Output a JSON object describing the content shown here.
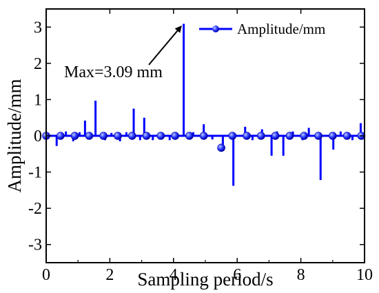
{
  "chart_data": {
    "type": "line",
    "title": "",
    "xlabel": "Sampling period/s",
    "ylabel": "Amplitude/mm",
    "xlim": [
      0,
      10
    ],
    "ylim": [
      -3.5,
      3.5
    ],
    "xticks": [
      0,
      2,
      4,
      6,
      8,
      10
    ],
    "xtick_labels": [
      "0",
      "2",
      "4",
      "6",
      "8",
      "10"
    ],
    "yticks": [
      -3,
      -2,
      -1,
      0,
      1,
      2,
      3
    ],
    "ytick_labels": [
      "-3",
      "-2",
      "-1",
      "0",
      "1",
      "2",
      "3"
    ],
    "grid": false,
    "legend_position": "top-right",
    "series": [
      {
        "name": "Amplitude/mm",
        "color": "#0000ff",
        "marker": "circle",
        "spikes": [
          {
            "x": 0.33,
            "y": -0.28
          },
          {
            "x": 0.62,
            "y": 0.12
          },
          {
            "x": 0.85,
            "y": -0.15
          },
          {
            "x": 1.05,
            "y": 0.1
          },
          {
            "x": 1.22,
            "y": 0.42
          },
          {
            "x": 1.55,
            "y": 0.97
          },
          {
            "x": 1.85,
            "y": -0.12
          },
          {
            "x": 2.05,
            "y": 0.08
          },
          {
            "x": 2.32,
            "y": -0.15
          },
          {
            "x": 2.52,
            "y": 0.1
          },
          {
            "x": 2.75,
            "y": 0.75
          },
          {
            "x": 2.95,
            "y": -0.12
          },
          {
            "x": 3.08,
            "y": 0.5
          },
          {
            "x": 3.35,
            "y": -0.12
          },
          {
            "x": 3.55,
            "y": 0.08
          },
          {
            "x": 3.88,
            "y": -0.12
          },
          {
            "x": 4.32,
            "y": 3.09
          },
          {
            "x": 4.62,
            "y": 0.1
          },
          {
            "x": 4.95,
            "y": 0.32
          },
          {
            "x": 5.22,
            "y": -0.1
          },
          {
            "x": 5.55,
            "y": -0.32
          },
          {
            "x": 5.88,
            "y": -1.38
          },
          {
            "x": 6.25,
            "y": 0.25
          },
          {
            "x": 6.48,
            "y": -0.12
          },
          {
            "x": 6.78,
            "y": 0.18
          },
          {
            "x": 7.08,
            "y": -0.55
          },
          {
            "x": 7.25,
            "y": 0.12
          },
          {
            "x": 7.45,
            "y": -0.55
          },
          {
            "x": 7.75,
            "y": 0.12
          },
          {
            "x": 8.05,
            "y": -0.12
          },
          {
            "x": 8.25,
            "y": 0.22
          },
          {
            "x": 8.62,
            "y": -1.22
          },
          {
            "x": 9.02,
            "y": -0.38
          },
          {
            "x": 9.25,
            "y": 0.12
          },
          {
            "x": 9.62,
            "y": -0.12
          },
          {
            "x": 9.88,
            "y": 0.35
          }
        ],
        "marker_points": [
          {
            "x": 0.0,
            "y": 0.0
          },
          {
            "x": 0.45,
            "y": 0.0
          },
          {
            "x": 0.9,
            "y": 0.0
          },
          {
            "x": 1.35,
            "y": 0.0
          },
          {
            "x": 1.8,
            "y": 0.0
          },
          {
            "x": 2.25,
            "y": 0.0
          },
          {
            "x": 2.7,
            "y": 0.0
          },
          {
            "x": 3.15,
            "y": 0.0
          },
          {
            "x": 3.6,
            "y": 0.0
          },
          {
            "x": 4.05,
            "y": 0.0
          },
          {
            "x": 4.5,
            "y": 0.0
          },
          {
            "x": 4.95,
            "y": 0.0
          },
          {
            "x": 5.5,
            "y": -0.33
          },
          {
            "x": 5.85,
            "y": 0.0
          },
          {
            "x": 6.3,
            "y": 0.0
          },
          {
            "x": 6.75,
            "y": 0.0
          },
          {
            "x": 7.2,
            "y": 0.0
          },
          {
            "x": 7.65,
            "y": 0.0
          },
          {
            "x": 8.1,
            "y": 0.0
          },
          {
            "x": 8.55,
            "y": 0.0
          },
          {
            "x": 9.0,
            "y": 0.0
          },
          {
            "x": 9.45,
            "y": 0.0
          },
          {
            "x": 9.9,
            "y": 0.0
          }
        ]
      }
    ],
    "annotation": {
      "text": "Max=3.09 mm",
      "target": {
        "x": 4.32,
        "y": 3.09
      }
    }
  }
}
